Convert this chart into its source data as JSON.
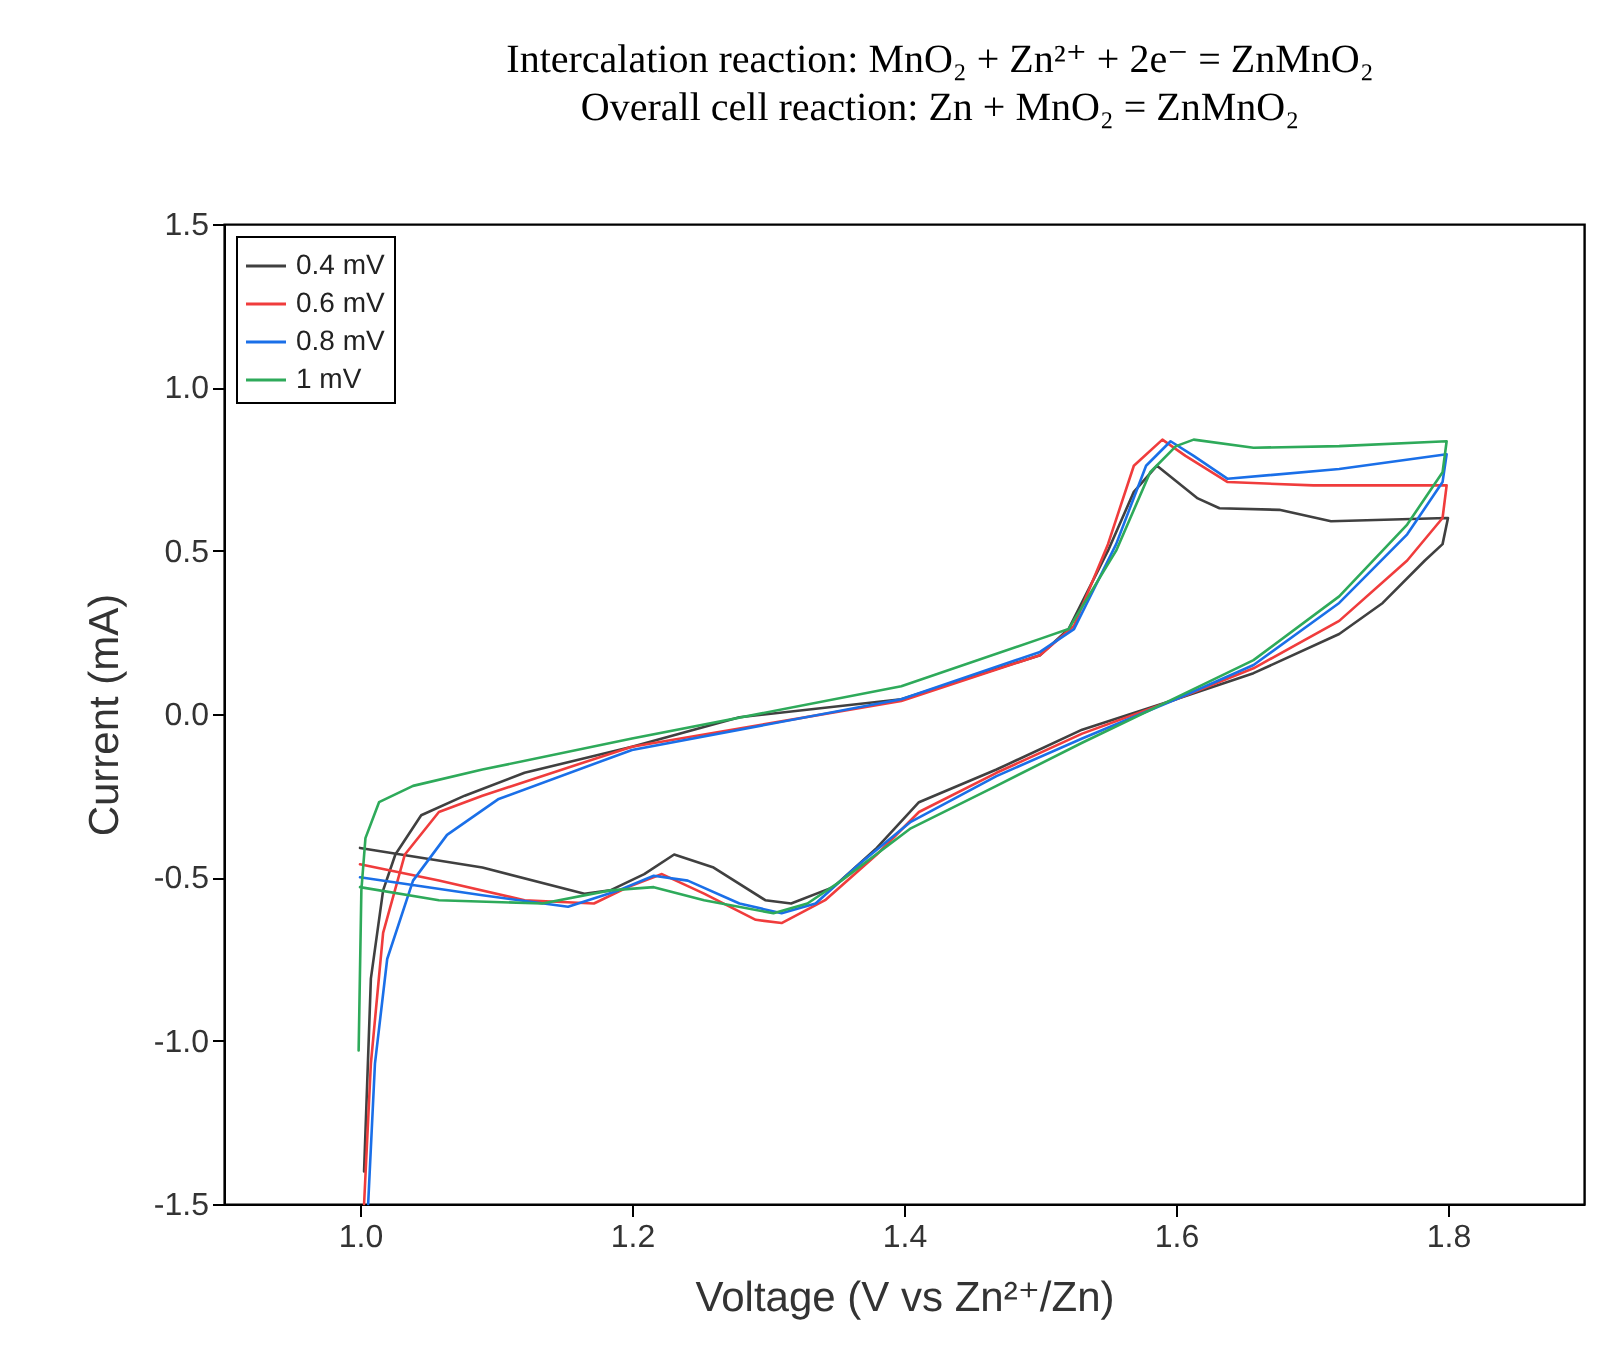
{
  "chart_data": {
    "type": "line",
    "title": "Intercalation reaction: MnO₂ + Zn²⁺ + 2e⁻ = ZnMnO₂",
    "subtitle": "Overall cell reaction: Zn + MnO₂ = ZnMnO₂",
    "xlabel": "Voltage (V vs Zn²⁺/Zn)",
    "ylabel": "Current (mA)",
    "xlim": [
      0.9,
      1.9
    ],
    "xticks": [
      {
        "value": 1,
        "label": "1.0"
      },
      {
        "value": 1.2,
        "label": "1.2"
      },
      {
        "value": 1.4,
        "label": "1.4"
      },
      {
        "value": 1.6,
        "label": "1.6"
      },
      {
        "value": 1.8,
        "label": "1.8"
      }
    ],
    "ylim": [
      -1.5,
      1.5
    ],
    "yticks": [
      {
        "value": -1.5,
        "label": "-1.5"
      },
      {
        "value": -1,
        "label": "-1.0"
      },
      {
        "value": -0.5,
        "label": "-0.5"
      },
      {
        "value": 0,
        "label": "0.0"
      },
      {
        "value": 0.5,
        "label": "0.5"
      },
      {
        "value": 1,
        "label": "1.0"
      },
      {
        "value": 1.5,
        "label": "1.5"
      }
    ],
    "legend": "top left",
    "grid": false,
    "marker": "none",
    "line_style": "solid",
    "series": [
      {
        "name": "0.4 mV",
        "color": "#404040",
        "x": [
          1.003,
          1.008,
          1.017,
          1.026,
          1.045,
          1.077,
          1.121,
          1.2,
          1.279,
          1.398,
          1.5,
          1.521,
          1.55,
          1.569,
          1.586,
          1.616,
          1.632,
          1.676,
          1.714,
          1.799,
          1.8,
          1.796,
          1.783,
          1.752,
          1.72,
          1.657,
          1.6,
          1.531,
          1.468,
          1.411,
          1.38,
          1.348,
          1.317,
          1.298,
          1.26,
          1.231,
          1.209,
          1.184,
          1.165,
          1.09,
          1.0
        ],
        "values": [
          -1.4,
          -0.81,
          -0.54,
          -0.43,
          -0.31,
          -0.25,
          -0.18,
          -0.1,
          -0.01,
          0.045,
          0.18,
          0.26,
          0.5,
          0.68,
          0.76,
          0.66,
          0.63,
          0.625,
          0.59,
          0.6,
          0.6,
          0.52,
          0.47,
          0.34,
          0.245,
          0.125,
          0.045,
          -0.048,
          -0.17,
          -0.27,
          -0.41,
          -0.53,
          -0.58,
          -0.57,
          -0.47,
          -0.43,
          -0.49,
          -0.54,
          -0.55,
          -0.47,
          -0.41
        ]
      },
      {
        "name": "0.6 mV",
        "color": "#f03c3c",
        "x": [
          1.003,
          1.008,
          1.017,
          1.033,
          1.058,
          1.09,
          1.2,
          1.398,
          1.5,
          1.525,
          1.55,
          1.569,
          1.59,
          1.607,
          1.638,
          1.701,
          1.799,
          1.796,
          1.77,
          1.72,
          1.657,
          1.6,
          1.531,
          1.468,
          1.411,
          1.38,
          1.342,
          1.31,
          1.291,
          1.253,
          1.222,
          1.197,
          1.172,
          1.121,
          1.058,
          1.0
        ],
        "values": [
          -1.5,
          -1.07,
          -0.67,
          -0.43,
          -0.3,
          -0.25,
          -0.1,
          0.04,
          0.18,
          0.27,
          0.52,
          0.76,
          0.84,
          0.79,
          0.71,
          0.7,
          0.7,
          0.6,
          0.47,
          0.285,
          0.14,
          0.045,
          -0.06,
          -0.18,
          -0.3,
          -0.43,
          -0.57,
          -0.64,
          -0.63,
          -0.55,
          -0.49,
          -0.53,
          -0.58,
          -0.57,
          -0.51,
          -0.46
        ]
      },
      {
        "name": "0.8 mV",
        "color": "#1a6fe8",
        "x": [
          1.006,
          1.011,
          1.02,
          1.039,
          1.064,
          1.102,
          1.2,
          1.398,
          1.5,
          1.525,
          1.556,
          1.578,
          1.596,
          1.613,
          1.638,
          1.72,
          1.799,
          1.796,
          1.77,
          1.72,
          1.657,
          1.6,
          1.531,
          1.468,
          1.405,
          1.367,
          1.335,
          1.31,
          1.279,
          1.241,
          1.216,
          1.19,
          1.153,
          1.09,
          1.0
        ],
        "values": [
          -1.5,
          -1.07,
          -0.75,
          -0.51,
          -0.37,
          -0.26,
          -0.11,
          0.045,
          0.19,
          0.26,
          0.52,
          0.76,
          0.835,
          0.79,
          0.72,
          0.75,
          0.795,
          0.71,
          0.55,
          0.34,
          0.15,
          0.045,
          -0.075,
          -0.19,
          -0.33,
          -0.46,
          -0.58,
          -0.61,
          -0.58,
          -0.51,
          -0.495,
          -0.54,
          -0.59,
          -0.555,
          -0.5
        ]
      },
      {
        "name": "1   mV",
        "color": "#2eaa5a",
        "x": [
          0.999,
          1.001,
          1.004,
          1.014,
          1.039,
          1.09,
          1.2,
          1.398,
          1.5,
          1.521,
          1.556,
          1.581,
          1.6,
          1.613,
          1.657,
          1.72,
          1.799,
          1.796,
          1.77,
          1.72,
          1.657,
          1.6,
          1.531,
          1.468,
          1.405,
          1.354,
          1.329,
          1.304,
          1.253,
          1.216,
          1.184,
          1.134,
          1.058,
          1.0
        ],
        "values": [
          -1.03,
          -0.54,
          -0.38,
          -0.27,
          -0.22,
          -0.17,
          -0.075,
          0.085,
          0.23,
          0.26,
          0.5,
          0.74,
          0.82,
          0.84,
          0.815,
          0.82,
          0.835,
          0.74,
          0.58,
          0.36,
          0.165,
          0.05,
          -0.088,
          -0.22,
          -0.35,
          -0.51,
          -0.58,
          -0.61,
          -0.57,
          -0.53,
          -0.54,
          -0.58,
          -0.57,
          -0.53
        ]
      }
    ]
  }
}
